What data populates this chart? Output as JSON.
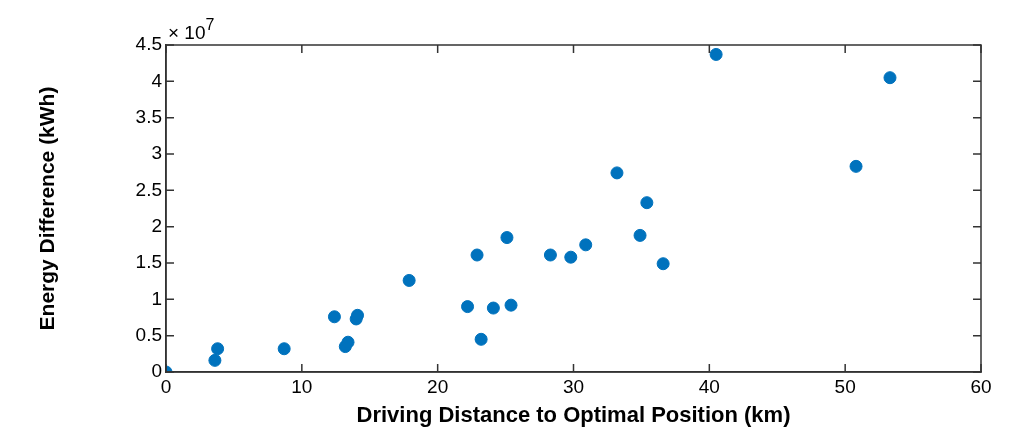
{
  "chart_data": {
    "type": "scatter",
    "xlabel": "Driving Distance to Optimal Position (km)",
    "ylabel": "Energy Difference (kWh)",
    "annotations": [
      "× 10$^{7}$"
    ],
    "x": [
      0,
      3.6,
      3.8,
      8.7,
      12.4,
      13.2,
      13.4,
      14.0,
      14.1,
      17.9,
      22.2,
      22.9,
      23.2,
      24.1,
      25.1,
      25.4,
      28.3,
      29.8,
      30.9,
      33.2,
      34.9,
      35.4,
      36.6,
      40.5,
      50.8,
      53.3
    ],
    "series": [
      {
        "color": "#0072bd",
        "values": [
          0,
          0.16,
          0.32,
          0.32,
          0.76,
          0.35,
          0.41,
          0.73,
          0.78,
          1.26,
          0.9,
          1.61,
          0.45,
          0.88,
          1.85,
          0.92,
          1.61,
          1.58,
          1.75,
          2.74,
          1.88,
          2.33,
          1.49,
          4.37,
          2.83,
          4.05
        ]
      }
    ],
    "xlim": [
      0,
      60
    ],
    "xticks": [
      0,
      10,
      20,
      30,
      40,
      50,
      60
    ],
    "ylim": [
      0,
      4.5
    ],
    "yticks": [
      0,
      0.5,
      1,
      1.5,
      2,
      2.5,
      3,
      3.5,
      4,
      4.5
    ],
    "grid": false,
    "legend": false,
    "marker": "circle"
  }
}
